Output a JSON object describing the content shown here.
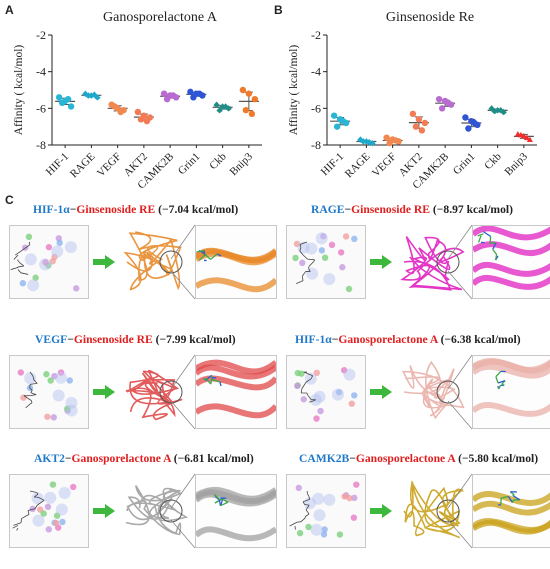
{
  "panels": {
    "A": {
      "label": "A",
      "title": "Ganosporelactone A",
      "ylabel": "Affinity ( kcal/mol)"
    },
    "B": {
      "label": "B",
      "title": "Ginsenoside Re",
      "ylabel": "Affinity ( kcal/mol)"
    },
    "C": {
      "label": "C"
    }
  },
  "chart_data": [
    {
      "type": "scatter",
      "title": "Ganosporelactone A",
      "ylabel": "Affinity ( kcal/mol)",
      "ylim": [
        -8,
        -2
      ],
      "yticks": [
        -2,
        -4,
        -6,
        -8
      ],
      "categories": [
        "HIF-1",
        "RAGE",
        "VEGF",
        "AKT2",
        "CAMK2B",
        "Grin1",
        "Ckb",
        "Bnip3"
      ],
      "colors": [
        "#29b6d4",
        "#1da8cc",
        "#f0884f",
        "#f27a55",
        "#b86bd0",
        "#2f55d4",
        "#1f8e86",
        "#f07a2c"
      ],
      "series": [
        {
          "category": "HIF-1",
          "values": [
            -5.4,
            -5.6,
            -5.9,
            -5.7,
            -5.5
          ],
          "mean": -5.62
        },
        {
          "category": "RAGE",
          "values": [
            -5.2,
            -5.3,
            -5.4,
            -5.3,
            -5.25
          ],
          "mean": -5.29
        },
        {
          "category": "VEGF",
          "values": [
            -5.8,
            -6.0,
            -6.1,
            -5.9,
            -6.2
          ],
          "mean": -6.0
        },
        {
          "category": "AKT2",
          "values": [
            -6.2,
            -6.4,
            -6.5,
            -6.6,
            -6.7
          ],
          "mean": -6.48
        },
        {
          "category": "CAMK2B",
          "values": [
            -5.2,
            -5.3,
            -5.4,
            -5.5,
            -5.3
          ],
          "mean": -5.34
        },
        {
          "category": "Grin1",
          "values": [
            -5.1,
            -5.2,
            -5.3,
            -5.4,
            -5.2
          ],
          "mean": -5.24
        },
        {
          "category": "Ckb",
          "values": [
            -5.8,
            -5.9,
            -6.0,
            -6.1,
            -5.9
          ],
          "mean": -5.94
        },
        {
          "category": "Bnip3",
          "values": [
            -5.0,
            -5.2,
            -5.5,
            -6.1,
            -6.3
          ],
          "mean": -5.62
        }
      ]
    },
    {
      "type": "scatter",
      "title": "Ginsenoside Re",
      "ylabel": "Affinity ( kcal/mol)",
      "ylim": [
        -8,
        -2
      ],
      "yticks": [
        -2,
        -4,
        -6,
        -8
      ],
      "categories": [
        "HIF-1",
        "RAGE",
        "VEGF",
        "AKT2",
        "CAMK2B",
        "Grin1",
        "Ckb",
        "Bnip3"
      ],
      "colors": [
        "#29b6d4",
        "#1da8cc",
        "#f0884f",
        "#f27a55",
        "#b86bd0",
        "#2f55d4",
        "#1f8e86",
        "#f02c2c"
      ],
      "series": [
        {
          "category": "HIF-1",
          "values": [
            -6.4,
            -6.6,
            -6.8,
            -7.0,
            -6.7
          ],
          "mean": -6.7
        },
        {
          "category": "RAGE",
          "values": [
            -7.7,
            -7.8,
            -7.9,
            -7.8,
            -7.85
          ],
          "mean": -7.81
        },
        {
          "category": "VEGF",
          "values": [
            -7.6,
            -7.7,
            -7.8,
            -7.9,
            -7.75
          ],
          "mean": -7.75
        },
        {
          "category": "AKT2",
          "values": [
            -6.3,
            -6.6,
            -6.8,
            -7.0,
            -7.2
          ],
          "mean": -6.78
        },
        {
          "category": "CAMK2B",
          "values": [
            -5.5,
            -5.6,
            -5.8,
            -6.0,
            -5.7
          ],
          "mean": -5.72
        },
        {
          "category": "Grin1",
          "values": [
            -6.5,
            -6.7,
            -6.9,
            -7.1,
            -6.8
          ],
          "mean": -6.8
        },
        {
          "category": "Ckb",
          "values": [
            -6.0,
            -6.1,
            -6.2,
            -6.15,
            -6.1
          ],
          "mean": -6.11
        },
        {
          "category": "Bnip3",
          "values": [
            -7.4,
            -7.5,
            -7.7,
            -7.45,
            -7.6
          ],
          "mean": -7.53
        }
      ]
    }
  ],
  "docking": [
    {
      "protein": "HIF-1α",
      "sep": "−",
      "ligand": "Ginsenoside RE",
      "energy": " (−7.04 kcal/mol)",
      "color": "#e8892a"
    },
    {
      "protein": "RAGE",
      "sep": "−",
      "ligand": "Ginsenoside RE",
      "energy": " (−8.97 kcal/mol)",
      "color": "#e020c0"
    },
    {
      "protein": "VEGF",
      "sep": "−",
      "ligand": "Ginsenoside RE",
      "energy": " (−7.99 kcal/mol)",
      "color": "#e04848"
    },
    {
      "protein": "HIF-1α",
      "sep": "−",
      "ligand": "Ganosporelactone A",
      "energy": " (−6.38 kcal/mol)",
      "color": "#e9b0a8"
    },
    {
      "protein": "AKT2",
      "sep": "−",
      "ligand": "Ganosporelactone A",
      "energy": " (−6.81 kcal/mol)",
      "color": "#a0a0a0"
    },
    {
      "protein": "CAMK2B",
      "sep": "−",
      "ligand": "Ganosporelactone A",
      "energy": " (−5.80 kcal/mol)",
      "color": "#c9a21a"
    }
  ]
}
